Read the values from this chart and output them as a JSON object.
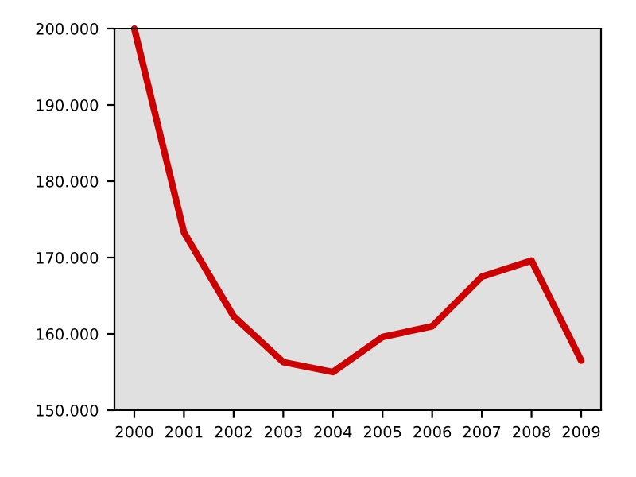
{
  "chart_data": {
    "type": "line",
    "categories": [
      "2000",
      "2001",
      "2002",
      "2003",
      "2004",
      "2005",
      "2006",
      "2007",
      "2008",
      "2009"
    ],
    "series": [
      {
        "color": "#cc0000",
        "values": [
          200,
          173.3,
          162.3,
          156.3,
          155,
          159.6,
          161,
          167.5,
          169.6,
          156.5
        ]
      }
    ],
    "ylim": [
      150,
      200
    ],
    "yticks": [
      {
        "value": 150,
        "label": "150.000"
      },
      {
        "value": 160,
        "label": "160.000"
      },
      {
        "value": 170,
        "label": "170.000"
      },
      {
        "value": 180,
        "label": "180.000"
      },
      {
        "value": 190,
        "label": "190.000"
      },
      {
        "value": 200,
        "label": "200.000"
      }
    ],
    "grid": false,
    "legend": false,
    "marker": "none",
    "line_style": "solid"
  }
}
